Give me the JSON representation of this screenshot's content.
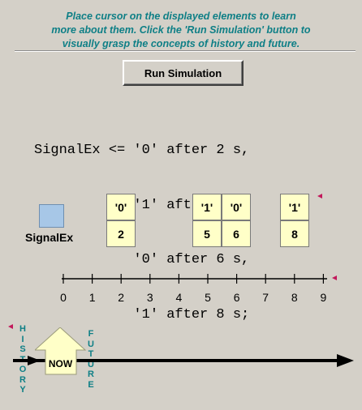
{
  "instructions": {
    "line1": "Place cursor on the displayed elements to learn",
    "line2": "more about them. Click the 'Run Simulation' button to",
    "line3": "visually grasp the concepts of history and future."
  },
  "run_button": {
    "label": "Run Simulation"
  },
  "code": {
    "lines": [
      "SignalEx <= '0' after 2 s,",
      "            '1' after 5 s,",
      "            '0' after 6 s,",
      "            '1' after 8 s;"
    ]
  },
  "signal": {
    "label": "SignalEx",
    "color": "#a7c7e7"
  },
  "transactions": [
    {
      "value": "'0'",
      "time": "2"
    },
    {
      "value": "'1'",
      "time": "5"
    },
    {
      "value": "'0'",
      "time": "6"
    },
    {
      "value": "'1'",
      "time": "8"
    }
  ],
  "timeline": {
    "ticks": [
      "0",
      "1",
      "2",
      "3",
      "4",
      "5",
      "6",
      "7",
      "8",
      "9"
    ]
  },
  "history_label": [
    "H",
    "I",
    "S",
    "T",
    "O",
    "R",
    "Y"
  ],
  "future_label": [
    "F",
    "U",
    "T",
    "U",
    "R",
    "E"
  ],
  "now_label": "NOW",
  "colors": {
    "accent_text": "#0e7f86",
    "cell_fill": "#ffffc8",
    "marker": "#c2185b",
    "background": "#d4d0c8"
  }
}
